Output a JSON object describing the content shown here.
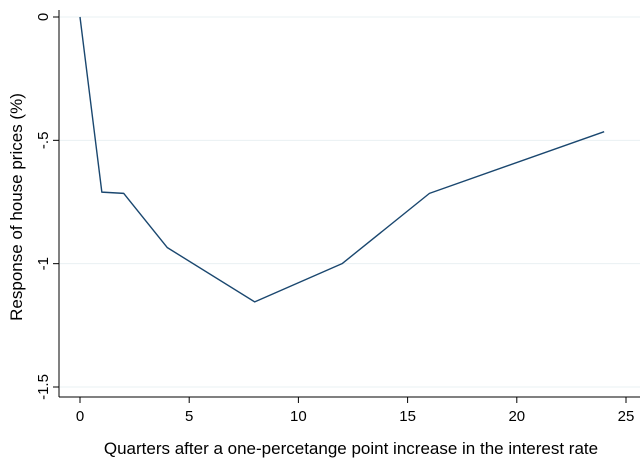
{
  "chart_data": {
    "type": "line",
    "title": "",
    "xlabel": "Quarters after a one-percetange point increase in the interest rate",
    "ylabel": "Response of house prices (%)",
    "xlim": [
      0,
      25
    ],
    "ylim": [
      -1.5,
      0
    ],
    "xticks": [
      0,
      5,
      10,
      15,
      20,
      25
    ],
    "xtick_labels": [
      "0",
      "5",
      "10",
      "15",
      "20",
      "25"
    ],
    "yticks": [
      0,
      -0.5,
      -1,
      -1.5
    ],
    "ytick_labels": [
      "0",
      "-.5",
      "-1",
      "-1.5"
    ],
    "grid": "horizontal",
    "legend": "none",
    "series": [
      {
        "color": "#1a476f",
        "x": [
          0,
          1,
          2,
          4,
          8,
          12,
          16,
          24
        ],
        "y": [
          0,
          -0.71,
          -0.715,
          -0.935,
          -1.155,
          -1.0,
          -0.715,
          -0.465
        ]
      }
    ]
  }
}
